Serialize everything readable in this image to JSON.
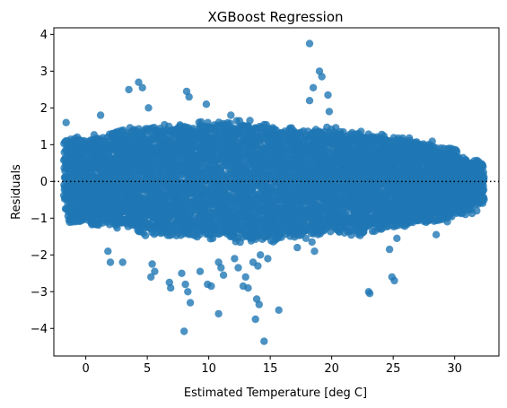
{
  "chart_data": {
    "type": "scatter",
    "title": "XGBoost Regression",
    "xlabel": "Estimated Temperature [deg C]",
    "ylabel": "Residuals",
    "xlim": [
      -2.6,
      33.6
    ],
    "ylim": [
      -4.75,
      4.18
    ],
    "xticks": [
      0,
      5,
      10,
      15,
      20,
      25,
      30
    ],
    "yticks": [
      -4,
      -3,
      -2,
      -1,
      0,
      1,
      2,
      3,
      4
    ],
    "reference_line": {
      "y": 0,
      "style": "dotted",
      "color": "#000000"
    },
    "grid": false,
    "legend": "none",
    "point_color": "#1f77b4",
    "point_alpha": 0.8,
    "bands": {
      "description_free": true,
      "slope_per_degree": -1.25,
      "centers": [
        -1.0,
        0.8,
        2.6,
        4.4,
        6.2,
        8.0,
        9.8,
        11.6,
        13.4,
        15.2,
        17.0,
        18.8,
        20.6,
        22.4,
        24.2,
        26.0,
        27.8,
        29.6,
        31.4
      ],
      "half_height": [
        1.2,
        1.2,
        1.3,
        1.5,
        1.5,
        1.6,
        1.6,
        1.7,
        1.7,
        1.6,
        1.5,
        1.4,
        1.5,
        1.4,
        1.3,
        1.2,
        1.1,
        0.9,
        0.6
      ]
    },
    "outliers": [
      [
        18.2,
        3.75
      ],
      [
        19.0,
        3.0
      ],
      [
        19.2,
        2.85
      ],
      [
        18.5,
        2.55
      ],
      [
        19.7,
        2.35
      ],
      [
        19.8,
        1.9
      ],
      [
        18.2,
        2.2
      ],
      [
        4.3,
        2.7
      ],
      [
        4.6,
        2.55
      ],
      [
        3.5,
        2.5
      ],
      [
        8.2,
        2.45
      ],
      [
        8.4,
        2.3
      ],
      [
        5.1,
        2.0
      ],
      [
        9.8,
        2.1
      ],
      [
        11.8,
        1.8
      ],
      [
        12.5,
        1.65
      ],
      [
        1.2,
        1.8
      ],
      [
        -1.6,
        1.6
      ],
      [
        16.6,
        1.45
      ],
      [
        15.8,
        1.3
      ],
      [
        21.6,
        1.15
      ],
      [
        25.5,
        0.95
      ],
      [
        29.1,
        0.9
      ],
      [
        28.2,
        0.65
      ],
      [
        27.8,
        0.55
      ],
      [
        26.5,
        0.6
      ],
      [
        21.2,
        -0.7
      ],
      [
        23.6,
        -0.9
      ],
      [
        24.4,
        -0.95
      ],
      [
        23.2,
        -0.95
      ],
      [
        31.8,
        -0.8
      ],
      [
        28.5,
        -1.45
      ],
      [
        25.3,
        -1.55
      ],
      [
        22.5,
        -1.1
      ],
      [
        24.7,
        -1.85
      ],
      [
        24.9,
        -2.6
      ],
      [
        25.1,
        -2.7
      ],
      [
        23.0,
        -3.0
      ],
      [
        23.1,
        -3.05
      ],
      [
        17.9,
        -1.55
      ],
      [
        17.2,
        -1.8
      ],
      [
        18.4,
        -1.65
      ],
      [
        18.6,
        -1.9
      ],
      [
        14.6,
        -1.5
      ],
      [
        15.6,
        -1.55
      ],
      [
        14.2,
        -2.0
      ],
      [
        14.0,
        -2.3
      ],
      [
        13.6,
        -2.2
      ],
      [
        14.8,
        -2.1
      ],
      [
        12.1,
        -2.1
      ],
      [
        12.4,
        -2.35
      ],
      [
        13.0,
        -2.6
      ],
      [
        12.8,
        -2.85
      ],
      [
        13.2,
        -2.9
      ],
      [
        11.0,
        -2.35
      ],
      [
        10.8,
        -2.2
      ],
      [
        9.9,
        -2.8
      ],
      [
        10.2,
        -2.85
      ],
      [
        7.8,
        -2.5
      ],
      [
        8.1,
        -2.8
      ],
      [
        8.3,
        -3.0
      ],
      [
        8.5,
        -3.3
      ],
      [
        6.8,
        -2.75
      ],
      [
        6.9,
        -2.9
      ],
      [
        5.4,
        -2.25
      ],
      [
        5.6,
        -2.45
      ],
      [
        5.3,
        -2.6
      ],
      [
        3.0,
        -2.2
      ],
      [
        2.0,
        -2.2
      ],
      [
        1.8,
        -1.9
      ],
      [
        1.0,
        -1.15
      ],
      [
        13.9,
        -3.2
      ],
      [
        14.1,
        -3.35
      ],
      [
        13.8,
        -3.75
      ],
      [
        15.7,
        -3.5
      ],
      [
        14.5,
        -4.35
      ],
      [
        10.8,
        -3.6
      ],
      [
        8.0,
        -4.08
      ],
      [
        11.2,
        -2.55
      ],
      [
        9.3,
        -2.45
      ]
    ]
  }
}
